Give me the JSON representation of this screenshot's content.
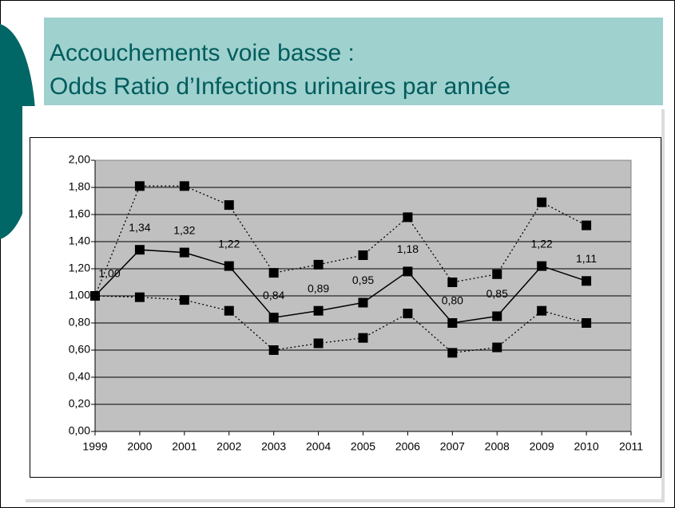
{
  "chart_data": {
    "type": "line",
    "title": [
      "Accouchements voie basse :",
      "Odds Ratio d’Infections urinaires par année"
    ],
    "x": [
      1999,
      2000,
      2001,
      2002,
      2003,
      2004,
      2005,
      2006,
      2007,
      2008,
      2009,
      2010
    ],
    "series": [
      {
        "color": "#000000",
        "line_style": "dotted",
        "values": [
          1.0,
          1.81,
          1.81,
          1.67,
          1.17,
          1.23,
          1.3,
          1.58,
          1.1,
          1.16,
          1.69,
          1.52
        ]
      },
      {
        "color": "#000000",
        "line_style": "solid",
        "values": [
          1.0,
          1.34,
          1.32,
          1.22,
          0.84,
          0.89,
          0.95,
          1.18,
          0.8,
          0.85,
          1.22,
          1.11
        ],
        "value_labels": [
          "1,00",
          "1,34",
          "1,32",
          "1,22",
          "0,84",
          "0,89",
          "0,95",
          "1,18",
          "0,80",
          "0,85",
          "1,22",
          "1,11"
        ]
      },
      {
        "color": "#000000",
        "line_style": "dotted",
        "values": [
          1.0,
          0.99,
          0.97,
          0.89,
          0.6,
          0.65,
          0.69,
          0.87,
          0.58,
          0.62,
          0.89,
          0.8
        ]
      }
    ],
    "xlim": [
      1999,
      2011
    ],
    "xticks": [
      1999,
      2000,
      2001,
      2002,
      2003,
      2004,
      2005,
      2006,
      2007,
      2008,
      2009,
      2010,
      2011
    ],
    "ylim": [
      0,
      2
    ],
    "yticks": [
      {
        "value": 0,
        "label": "0,00"
      },
      {
        "value": 0.2,
        "label": "0,20"
      },
      {
        "value": 0.4,
        "label": "0,40"
      },
      {
        "value": 0.6,
        "label": "0,60"
      },
      {
        "value": 0.8,
        "label": "0,80"
      },
      {
        "value": 1.0,
        "label": "1,00"
      },
      {
        "value": 1.2,
        "label": "1,20"
      },
      {
        "value": 1.4,
        "label": "1,40"
      },
      {
        "value": 1.6,
        "label": "1,60"
      },
      {
        "value": 1.8,
        "label": "1,80"
      },
      {
        "value": 2.0,
        "label": "2,00"
      }
    ],
    "grid": true,
    "plot_background": "#c0c0c0"
  }
}
